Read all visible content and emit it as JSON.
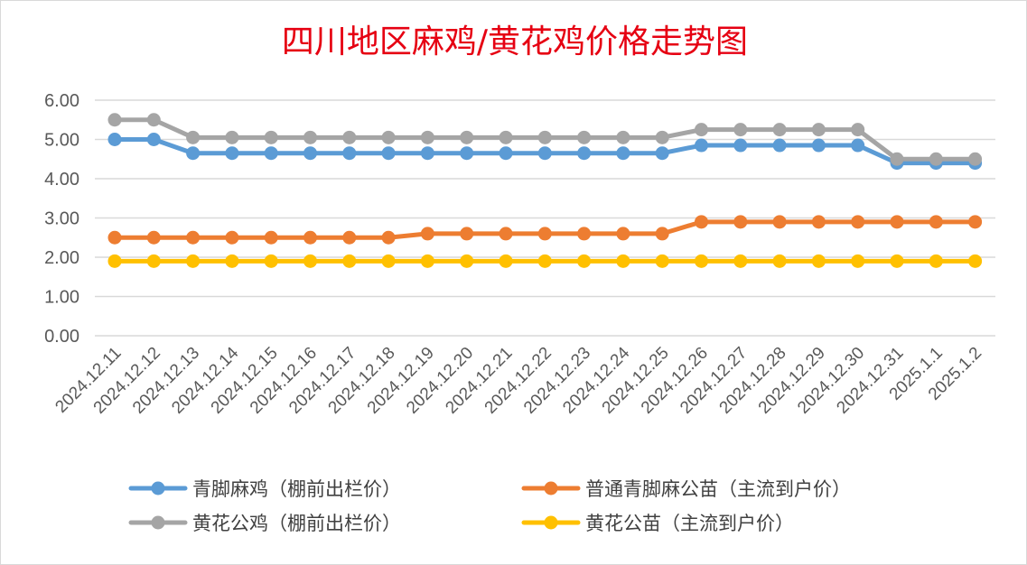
{
  "chart_data": {
    "type": "line",
    "title": "四川地区麻鸡/黄花鸡价格走势图",
    "xlabel": "",
    "ylabel": "",
    "ylim": [
      0,
      6
    ],
    "yticks": [
      "0.00",
      "1.00",
      "2.00",
      "3.00",
      "4.00",
      "5.00",
      "6.00"
    ],
    "grid": true,
    "legend_position": "bottom",
    "categories": [
      "2024.12.11",
      "2024.12.12",
      "2024.12.13",
      "2024.12.14",
      "2024.12.15",
      "2024.12.16",
      "2024.12.17",
      "2024.12.18",
      "2024.12.19",
      "2024.12.20",
      "2024.12.21",
      "2024.12.22",
      "2024.12.23",
      "2024.12.24",
      "2024.12.25",
      "2024.12.26",
      "2024.12.27",
      "2024.12.28",
      "2024.12.29",
      "2024.12.30",
      "2024.12.31",
      "2025.1.1",
      "2025.1.2"
    ],
    "series": [
      {
        "name": "青脚麻鸡（棚前出栏价）",
        "color": "#5b9bd5",
        "values": [
          5.0,
          5.0,
          4.65,
          4.65,
          4.65,
          4.65,
          4.65,
          4.65,
          4.65,
          4.65,
          4.65,
          4.65,
          4.65,
          4.65,
          4.65,
          4.85,
          4.85,
          4.85,
          4.85,
          4.85,
          4.4,
          4.4,
          4.4
        ]
      },
      {
        "name": "普通青脚麻公苗（主流到户价）",
        "color": "#ed7d31",
        "values": [
          2.5,
          2.5,
          2.5,
          2.5,
          2.5,
          2.5,
          2.5,
          2.5,
          2.6,
          2.6,
          2.6,
          2.6,
          2.6,
          2.6,
          2.6,
          2.9,
          2.9,
          2.9,
          2.9,
          2.9,
          2.9,
          2.9,
          2.9
        ]
      },
      {
        "name": "黄花公鸡（棚前出栏价）",
        "color": "#a5a5a5",
        "values": [
          5.5,
          5.5,
          5.05,
          5.05,
          5.05,
          5.05,
          5.05,
          5.05,
          5.05,
          5.05,
          5.05,
          5.05,
          5.05,
          5.05,
          5.05,
          5.25,
          5.25,
          5.25,
          5.25,
          5.25,
          4.5,
          4.5,
          4.5
        ]
      },
      {
        "name": "黄花公苗（主流到户价）",
        "color": "#ffc000",
        "values": [
          1.9,
          1.9,
          1.9,
          1.9,
          1.9,
          1.9,
          1.9,
          1.9,
          1.9,
          1.9,
          1.9,
          1.9,
          1.9,
          1.9,
          1.9,
          1.9,
          1.9,
          1.9,
          1.9,
          1.9,
          1.9,
          1.9,
          1.9
        ]
      }
    ]
  }
}
